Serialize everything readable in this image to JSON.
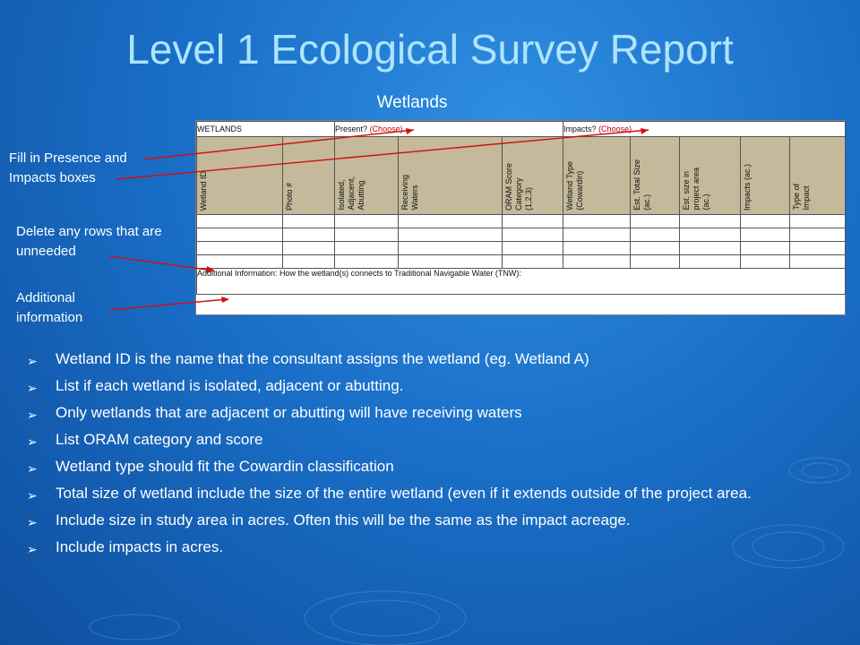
{
  "slide": {
    "title": "Level 1 Ecological Survey Report",
    "subtitle": "Wetlands"
  },
  "table": {
    "top": {
      "wetlands": "WETLANDS",
      "present_label": "Present?",
      "present_choice": "(Choose)",
      "impacts_label": "Impacts?",
      "impacts_choice": "(Choose)"
    },
    "columns": [
      "Wetland ID",
      "Photo #",
      "Isolated,\nAdjacent,\nAbutting",
      "Receiving\nWaters",
      "ORAM Score\nCategory\n(1,2,3)",
      "Wetland Type\n(Cowardin)",
      "Est. Total Size\n(ac.)",
      "Est. size in\nproject area\n(ac.)",
      "Impacts (ac.)",
      "Type of\nImpact"
    ],
    "additional_info": "Additional Information: How the wetland(s) connects to Traditional Navigable Water (TNW):"
  },
  "notes": {
    "presence": "Fill in Presence and Impacts boxes",
    "delete_rows": "Delete any rows that are unneeded",
    "additional": "Additional information"
  },
  "bullets": [
    "Wetland ID is the name that the consultant assigns the wetland (eg. Wetland A)",
    "List if each wetland is isolated, adjacent or abutting.",
    "Only wetlands that are adjacent or abutting will have receiving waters",
    "List ORAM category and score",
    "Wetland type should fit the Cowardin classification",
    "Total size of wetland include the size of the entire wetland (even if it extends outside of the project area.",
    "Include size in study area in acres.  Often this will be the same as the impact acreage.",
    "Include impacts in acres."
  ],
  "colors": {
    "title": "#aee4ff",
    "header_fill": "#c4b99a",
    "arrow": "#d01010"
  }
}
